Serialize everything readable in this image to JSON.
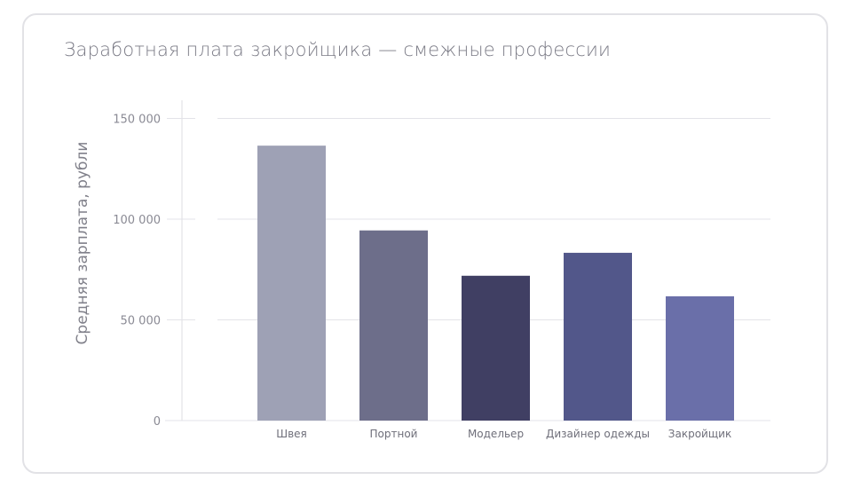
{
  "chart_data": {
    "type": "bar",
    "title": "Заработная плата закройщика — смежные профессии",
    "xlabel": "",
    "ylabel": "Средняя зарплата, рубли",
    "ylim": [
      0,
      150000
    ],
    "yticks": [
      0,
      50000,
      100000,
      150000
    ],
    "ytick_labels": [
      "0",
      "50 000",
      "100 000",
      "150 000"
    ],
    "grid": true,
    "categories": [
      "Швея",
      "Портной",
      "Модельер",
      "Дизайнер одежды",
      "Закройщик"
    ],
    "values": [
      136500,
      94400,
      71900,
      83300,
      61700
    ],
    "colors": [
      "#9ea1b5",
      "#6d6e8a",
      "#403f63",
      "#52578a",
      "#6a6fa9"
    ]
  },
  "colors": {
    "grid": "#e3e3e8",
    "axis": "#dcdce2"
  }
}
